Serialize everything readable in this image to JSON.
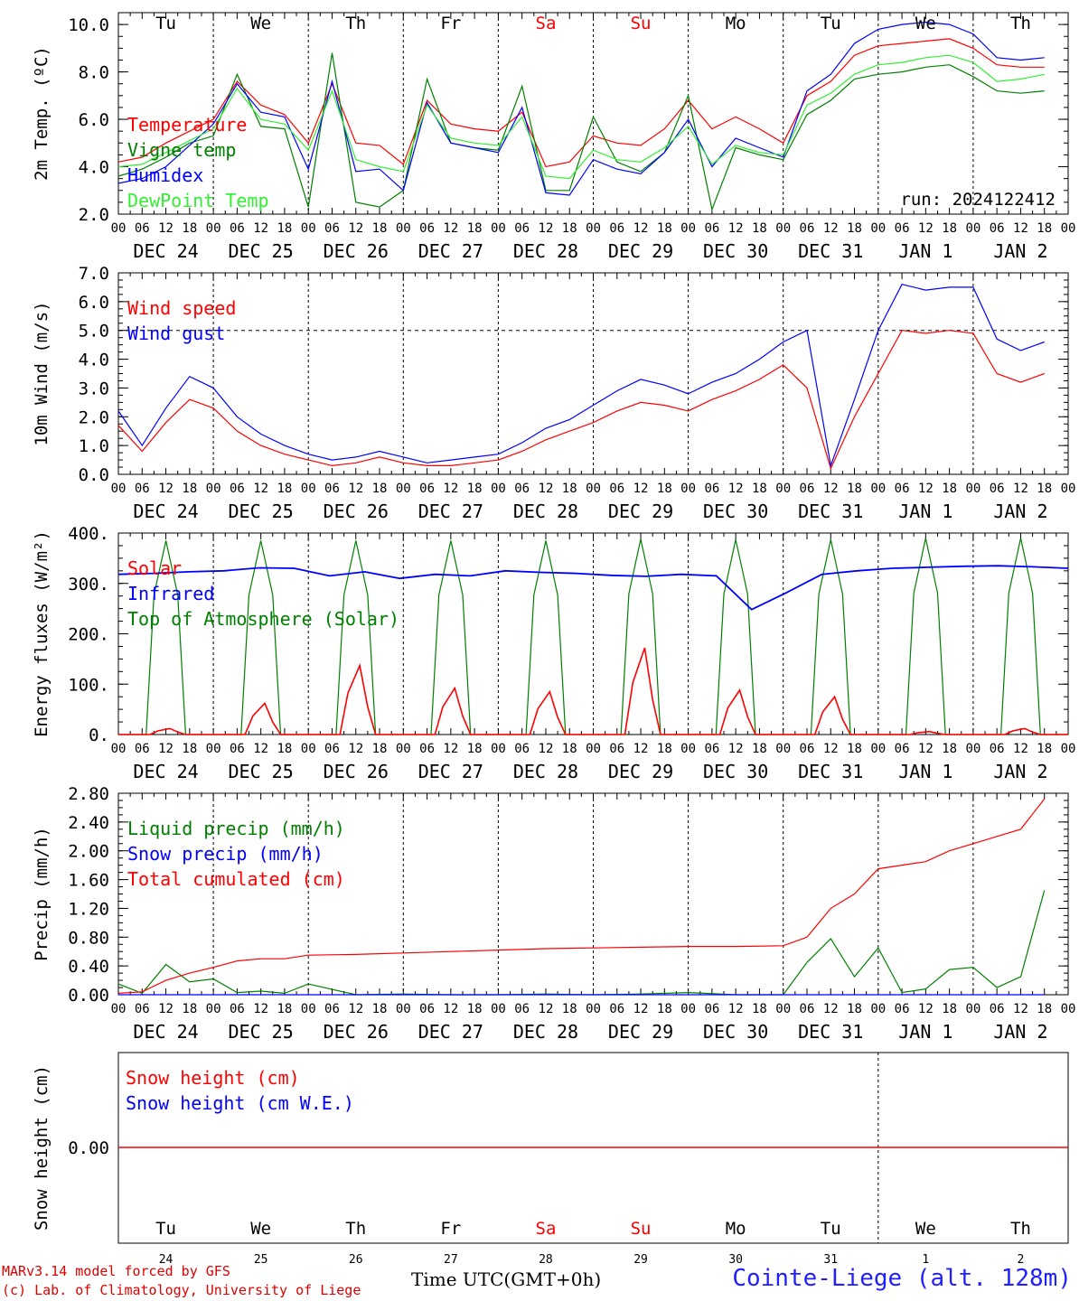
{
  "chart_data": [
    {
      "type": "line",
      "ylabel": "2m Temp. (ºC)",
      "ylim": [
        2.0,
        10.5
      ],
      "yticks": [
        "2.0",
        "4.0",
        "6.0",
        "8.0",
        "10.0"
      ],
      "grid": false,
      "legend": [
        "Temperature",
        "Vigne temp",
        "Humidex",
        "DewPoint Temp"
      ],
      "annotation": "run: 2024122412",
      "x": [
        0,
        6,
        12,
        18,
        24,
        30,
        36,
        42,
        48,
        54,
        60,
        66,
        72,
        78,
        84,
        90,
        96,
        102,
        108,
        114,
        120,
        126,
        132,
        138,
        144,
        150,
        156,
        162,
        168,
        174,
        180,
        186,
        192,
        198,
        204,
        210,
        216,
        222,
        228,
        234
      ],
      "series": [
        {
          "name": "Temperature",
          "color": "#ff0000",
          "values": [
            4.2,
            4.4,
            5.0,
            5.5,
            6.0,
            7.6,
            6.6,
            6.2,
            5.0,
            7.5,
            5.0,
            4.9,
            4.1,
            6.8,
            5.8,
            5.6,
            5.5,
            6.3,
            4.0,
            4.2,
            5.3,
            5.0,
            4.9,
            5.6,
            6.8,
            5.6,
            6.1,
            5.6,
            5.0,
            7.0,
            7.6,
            8.7,
            9.1,
            9.2,
            9.3,
            9.4,
            9.0,
            8.3,
            8.2,
            8.2
          ]
        },
        {
          "name": "Vigne temp",
          "color": "#008000",
          "values": [
            3.6,
            3.9,
            4.4,
            5.0,
            5.3,
            7.9,
            5.7,
            5.6,
            2.3,
            8.8,
            2.5,
            2.3,
            3.0,
            7.7,
            5.0,
            4.8,
            4.7,
            7.4,
            3.0,
            3.0,
            6.1,
            4.2,
            3.8,
            4.6,
            7.0,
            2.2,
            4.8,
            4.5,
            4.3,
            6.2,
            6.8,
            7.7,
            7.9,
            8.0,
            8.2,
            8.3,
            7.8,
            7.2,
            7.1,
            7.2
          ]
        },
        {
          "name": "Humidex",
          "color": "#0000ff",
          "values": [
            3.3,
            3.5,
            4.0,
            4.9,
            5.8,
            7.5,
            6.3,
            6.1,
            3.9,
            7.6,
            3.8,
            3.9,
            3.0,
            6.7,
            5.0,
            4.8,
            4.6,
            6.5,
            2.9,
            2.8,
            4.3,
            3.9,
            3.7,
            4.6,
            6.0,
            4.0,
            5.2,
            4.8,
            4.4,
            7.2,
            7.9,
            9.2,
            9.8,
            10.0,
            10.1,
            10.0,
            9.6,
            8.6,
            8.5,
            8.6
          ]
        },
        {
          "name": "DewPoint Temp",
          "color": "#33ee33",
          "values": [
            4.0,
            4.1,
            4.6,
            5.1,
            5.6,
            7.3,
            6.0,
            5.8,
            4.7,
            7.2,
            4.3,
            4.0,
            3.8,
            6.6,
            5.2,
            5.0,
            4.9,
            6.1,
            3.6,
            3.5,
            4.7,
            4.3,
            4.2,
            4.8,
            5.7,
            4.1,
            4.9,
            4.6,
            4.5,
            6.6,
            7.1,
            7.9,
            8.3,
            8.4,
            8.6,
            8.7,
            8.4,
            7.6,
            7.7,
            7.9
          ]
        }
      ]
    },
    {
      "type": "line",
      "ylabel": "10m Wind (m/s)",
      "ylim": [
        0.0,
        7.0
      ],
      "yticks": [
        "0.0",
        "1.0",
        "2.0",
        "3.0",
        "4.0",
        "5.0",
        "6.0",
        "7.0"
      ],
      "hline": 5.0,
      "legend": [
        "Wind speed",
        "Wind gust"
      ],
      "x": [
        0,
        6,
        12,
        18,
        24,
        30,
        36,
        42,
        48,
        54,
        60,
        66,
        72,
        78,
        84,
        90,
        96,
        102,
        108,
        114,
        120,
        126,
        132,
        138,
        144,
        150,
        156,
        162,
        168,
        174,
        180,
        186,
        192,
        198,
        204,
        210,
        216,
        222,
        228,
        234
      ],
      "series": [
        {
          "name": "Wind speed",
          "color": "#ff0000",
          "values": [
            1.7,
            0.8,
            1.8,
            2.6,
            2.3,
            1.5,
            1.0,
            0.7,
            0.5,
            0.3,
            0.4,
            0.6,
            0.4,
            0.3,
            0.3,
            0.4,
            0.5,
            0.8,
            1.2,
            1.5,
            1.8,
            2.2,
            2.5,
            2.4,
            2.2,
            2.6,
            2.9,
            3.3,
            3.8,
            3.0,
            0.2,
            2.0,
            3.5,
            5.0,
            4.9,
            5.0,
            4.9,
            3.5,
            3.2,
            3.5
          ]
        },
        {
          "name": "Wind gust",
          "color": "#0000ff",
          "values": [
            2.2,
            1.0,
            2.3,
            3.4,
            3.0,
            2.0,
            1.4,
            1.0,
            0.7,
            0.5,
            0.6,
            0.8,
            0.6,
            0.4,
            0.5,
            0.6,
            0.7,
            1.1,
            1.6,
            1.9,
            2.4,
            2.9,
            3.3,
            3.1,
            2.8,
            3.2,
            3.5,
            4.0,
            4.6,
            5.0,
            0.3,
            2.6,
            5.0,
            6.6,
            6.4,
            6.5,
            6.5,
            4.7,
            4.3,
            4.6
          ]
        }
      ]
    },
    {
      "type": "line",
      "ylabel": "Energy fluxes (W/m²)",
      "ylim": [
        0,
        400
      ],
      "yticks": [
        "0.",
        "100.",
        "200.",
        "300.",
        "400."
      ],
      "legend": [
        "Solar",
        "Infrared",
        "Top of Atmosphere (Solar)"
      ],
      "toa_peak": [
        385,
        385,
        385,
        385,
        385,
        388,
        387,
        387,
        390,
        390
      ],
      "solar_peak": [
        12,
        62,
        137,
        92,
        85,
        172,
        88,
        75,
        6,
        12
      ],
      "infrared": [
        318,
        320,
        323,
        325,
        331,
        330,
        315,
        323,
        310,
        318,
        315,
        325,
        322,
        320,
        316,
        314,
        318,
        315,
        248,
        282,
        318,
        325,
        330,
        332,
        334,
        335,
        333,
        330
      ],
      "series": [
        {
          "name": "Solar",
          "color": "#ff0000"
        },
        {
          "name": "Infrared",
          "color": "#0000ff"
        },
        {
          "name": "Top of Atmosphere (Solar)",
          "color": "#008000"
        }
      ]
    },
    {
      "type": "line",
      "ylabel": "Precip (mm/h)",
      "ylim": [
        0.0,
        2.8
      ],
      "yticks": [
        "0.00",
        "0.40",
        "0.80",
        "1.20",
        "1.60",
        "2.00",
        "2.40",
        "2.80"
      ],
      "legend": [
        "Liquid precip (mm/h)",
        "Snow precip (mm/h)",
        "Total cumulated (cm)"
      ],
      "x": [
        0,
        6,
        12,
        18,
        24,
        30,
        36,
        42,
        48,
        60,
        72,
        84,
        96,
        108,
        120,
        132,
        144,
        156,
        168,
        174,
        180,
        186,
        192,
        198,
        204,
        210,
        216,
        222,
        228,
        234
      ],
      "series": [
        {
          "name": "Liquid precip (mm/h)",
          "color": "#008000",
          "values": [
            0.15,
            0.02,
            0.42,
            0.18,
            0.22,
            0.03,
            0.05,
            0.02,
            0.15,
            0.0,
            0.01,
            0.0,
            0.0,
            0.01,
            0.0,
            0.01,
            0.03,
            0.0,
            0.0,
            0.45,
            0.78,
            0.25,
            0.65,
            0.03,
            0.08,
            0.35,
            0.38,
            0.1,
            0.25,
            1.45
          ]
        },
        {
          "name": "Snow precip (mm/h)",
          "color": "#0000ff",
          "values": [
            0,
            0,
            0,
            0,
            0,
            0,
            0,
            0,
            0,
            0,
            0,
            0,
            0,
            0,
            0,
            0,
            0,
            0,
            0,
            0,
            0,
            0,
            0,
            0,
            0,
            0,
            0,
            0,
            0,
            0
          ]
        },
        {
          "name": "Total cumulated (cm)",
          "color": "#ff0000",
          "values": [
            0.02,
            0.04,
            0.2,
            0.3,
            0.38,
            0.47,
            0.5,
            0.5,
            0.55,
            0.56,
            0.58,
            0.6,
            0.62,
            0.64,
            0.65,
            0.66,
            0.67,
            0.67,
            0.68,
            0.8,
            1.2,
            1.4,
            1.75,
            1.8,
            1.85,
            2.0,
            2.1,
            2.2,
            2.3,
            2.72
          ]
        }
      ]
    },
    {
      "type": "line",
      "ylabel": "Snow height (cm)",
      "yticks": [
        "0.00"
      ],
      "legend": [
        "Snow height (cm)",
        "Snow height (cm W.E.)"
      ],
      "series": [
        {
          "name": "Snow height (cm)",
          "color": "#ff0000",
          "values": [
            0.0
          ]
        },
        {
          "name": "Snow height (cm W.E.)",
          "color": "#0000ff",
          "values": [
            0.0
          ]
        }
      ]
    }
  ],
  "days": [
    "Tu",
    "We",
    "Th",
    "Fr",
    "Sa",
    "Su",
    "Mo",
    "Tu",
    "We",
    "Th"
  ],
  "weekend_days": [
    "Sa",
    "Su"
  ],
  "date_labels": [
    "DEC 24",
    "DEC 25",
    "DEC 26",
    "DEC 27",
    "DEC 28",
    "DEC 29",
    "DEC 30",
    "DEC 31",
    "JAN  1",
    "JAN  2"
  ],
  "hour_labels": [
    "00",
    "06",
    "12",
    "18"
  ],
  "day_numbers": [
    "24",
    "25",
    "26",
    "27",
    "28",
    "29",
    "30",
    "31",
    "1",
    "2"
  ],
  "xlabel": "Time UTC(GMT+0h)",
  "credits": [
    "MARv3.14 model forced by GFS",
    "(c) Lab. of Climatology, University of Liege"
  ],
  "station": "Cointe-Liege (alt. 128m)"
}
